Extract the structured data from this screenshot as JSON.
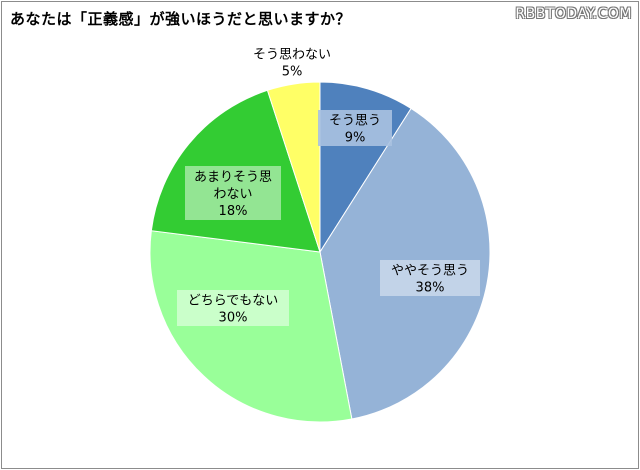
{
  "watermark": "RBBTODAY.COM",
  "chart_data": {
    "type": "pie",
    "title": "あなたは「正義感」が強いほうだと思いますか？",
    "slices": [
      {
        "label_lines": [
          "そう思う"
        ],
        "value": 9,
        "value_text": "9%",
        "color": "#4f81bd",
        "label_bg": "#a9c1e0",
        "label_bg_opacity": 0.9
      },
      {
        "label_lines": [
          "ややそう思う"
        ],
        "value": 38,
        "value_text": "38%",
        "color": "#95b3d7",
        "label_bg": "#c6d6ea",
        "label_bg_opacity": 0.9
      },
      {
        "label_lines": [
          "どちらでもない"
        ],
        "value": 30,
        "value_text": "30%",
        "color": "#99ff99",
        "label_bg": "#ccffcc",
        "label_bg_opacity": 0.95
      },
      {
        "label_lines": [
          "あまりそう思",
          "わない"
        ],
        "value": 18,
        "value_text": "18%",
        "color": "#33cc33",
        "label_bg": "#99e699",
        "label_bg_opacity": 0.95
      },
      {
        "label_lines": [
          "そう思わない"
        ],
        "value": 5,
        "value_text": "5%",
        "color": "#ffff66",
        "label_bg": "none",
        "label_bg_opacity": 0
      }
    ],
    "start_angle_deg": 0,
    "direction": "clockwise",
    "legend": "none"
  }
}
